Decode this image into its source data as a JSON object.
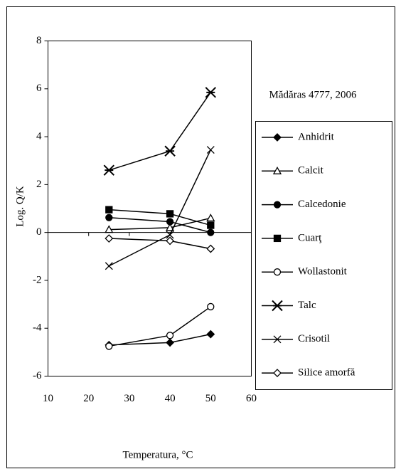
{
  "chart_data": {
    "type": "line",
    "annotation": "Mădăras 4777, 2006",
    "x_label": "Temperatura, °C",
    "y_label": "Log. Q/K",
    "x": [
      25,
      40,
      50
    ],
    "xlim": [
      10,
      60
    ],
    "xticks": [
      10,
      20,
      30,
      40,
      50,
      60
    ],
    "ylim": [
      -6,
      8
    ],
    "yticks": [
      -6,
      -4,
      -2,
      0,
      2,
      4,
      6,
      8
    ],
    "legend": "right",
    "series": [
      {
        "name": "Anhidrit",
        "color": "#000000",
        "marker": "diamond-filled",
        "values": [
          -4.7,
          -4.6,
          -4.25
        ]
      },
      {
        "name": "Calcit",
        "color": "#000000",
        "marker": "triangle-open",
        "values": [
          0.12,
          0.2,
          0.6
        ]
      },
      {
        "name": "Calcedonie",
        "color": "#000000",
        "marker": "circle-filled",
        "values": [
          0.62,
          0.45,
          0.0
        ]
      },
      {
        "name": "Cuarţ",
        "color": "#000000",
        "marker": "square-filled",
        "values": [
          0.95,
          0.78,
          0.3
        ]
      },
      {
        "name": "Wollastonit",
        "color": "#000000",
        "marker": "circle-open",
        "values": [
          -4.75,
          -4.3,
          -3.1
        ]
      },
      {
        "name": "Talc",
        "color": "#000000",
        "marker": "star",
        "values": [
          2.6,
          3.4,
          5.85
        ]
      },
      {
        "name": "Crisotil",
        "color": "#000000",
        "marker": "x",
        "values": [
          -1.4,
          -0.1,
          3.45
        ]
      },
      {
        "name": "Silice amorfă",
        "color": "#000000",
        "marker": "diamond-open",
        "values": [
          -0.25,
          -0.35,
          -0.68
        ]
      }
    ]
  }
}
